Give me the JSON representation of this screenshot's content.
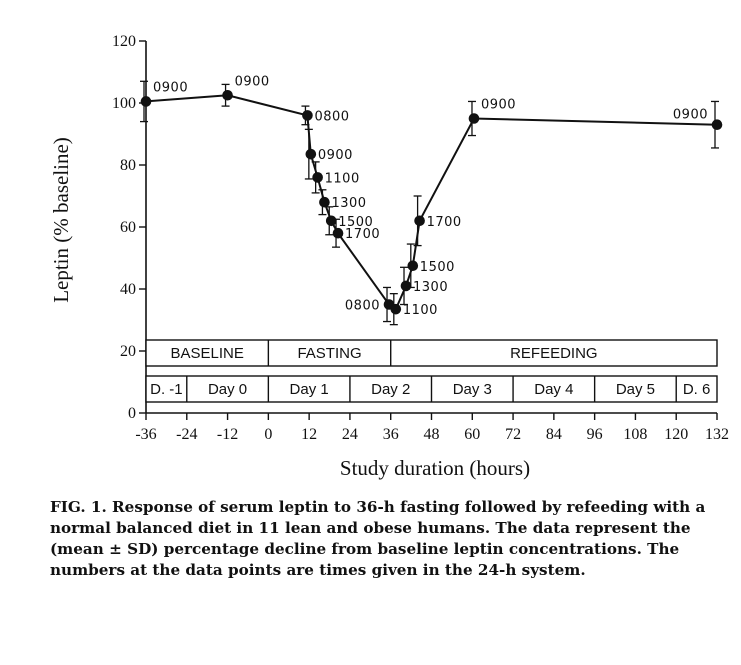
{
  "chart_data": {
    "type": "line",
    "xlabel": "Study duration (hours)",
    "ylabel": "Leptin (% baseline)",
    "xlim": [
      -36,
      132
    ],
    "ylim": [
      0,
      120
    ],
    "xticks": [
      -36,
      -24,
      -12,
      0,
      12,
      24,
      36,
      48,
      60,
      72,
      84,
      96,
      108,
      120,
      132
    ],
    "yticks": [
      0,
      20,
      40,
      60,
      80,
      100,
      120
    ],
    "grid": false,
    "series": [
      {
        "points": [
          {
            "x": -36,
            "y": 100.5,
            "sd": 6.5,
            "label": "0900",
            "label_side": "right-up"
          },
          {
            "x": -12,
            "y": 102.5,
            "sd": 3.5,
            "label": "0900",
            "label_side": "right-up"
          },
          {
            "x": 11.5,
            "y": 96,
            "sd": 3,
            "label": "0800",
            "label_side": "right"
          },
          {
            "x": 12.5,
            "y": 83.5,
            "sd": 8,
            "label": "0900",
            "label_side": "right"
          },
          {
            "x": 14.5,
            "y": 76,
            "sd": 5,
            "label": "1100",
            "label_side": "right"
          },
          {
            "x": 16.5,
            "y": 68,
            "sd": 4,
            "label": "1300",
            "label_side": "right"
          },
          {
            "x": 18.5,
            "y": 62,
            "sd": 4.5,
            "label": "1500",
            "label_side": "right"
          },
          {
            "x": 20.5,
            "y": 58,
            "sd": 4.5,
            "label": "1700",
            "label_side": "right"
          },
          {
            "x": 35.5,
            "y": 35,
            "sd": 5.5,
            "label": "0800",
            "label_side": "left"
          },
          {
            "x": 37.5,
            "y": 33.5,
            "sd": 5,
            "label": "1100",
            "label_side": "right"
          },
          {
            "x": 40.5,
            "y": 41,
            "sd": 6,
            "label": "1300",
            "label_side": "right"
          },
          {
            "x": 42.5,
            "y": 47.5,
            "sd": 7,
            "label": "1500",
            "label_side": "right"
          },
          {
            "x": 44.5,
            "y": 62,
            "sd": 8,
            "label": "1700",
            "label_side": "right"
          },
          {
            "x": 60.5,
            "y": 95,
            "sd": 5.5,
            "label": "0900",
            "label_side": "right-up"
          },
          {
            "x": 132,
            "y": 93,
            "sd": 7.5,
            "label": "0900",
            "label_side": "left-up"
          }
        ]
      }
    ],
    "phases": [
      {
        "label": "BASELINE",
        "from": -36,
        "to": 0
      },
      {
        "label": "FASTING",
        "from": 0,
        "to": 36
      },
      {
        "label": "REFEEDING",
        "from": 36,
        "to": 132
      }
    ],
    "days": [
      {
        "label": "D. -1",
        "from": -36,
        "to": -24
      },
      {
        "label": "Day 0",
        "from": -24,
        "to": 0
      },
      {
        "label": "Day 1",
        "from": 0,
        "to": 24
      },
      {
        "label": "Day 2",
        "from": 24,
        "to": 48
      },
      {
        "label": "Day 3",
        "from": 48,
        "to": 72
      },
      {
        "label": "Day 4",
        "from": 72,
        "to": 96
      },
      {
        "label": "Day 5",
        "from": 96,
        "to": 120
      },
      {
        "label": "D. 6",
        "from": 120,
        "to": 132
      }
    ]
  },
  "caption": "FIG. 1. Response of serum leptin to 36-h fasting followed by refeeding with a normal balanced diet in 11 lean and obese humans. The data represent the (mean ± SD) percentage decline from baseline leptin concentrations. The numbers at the data points are times given in the 24-h system."
}
